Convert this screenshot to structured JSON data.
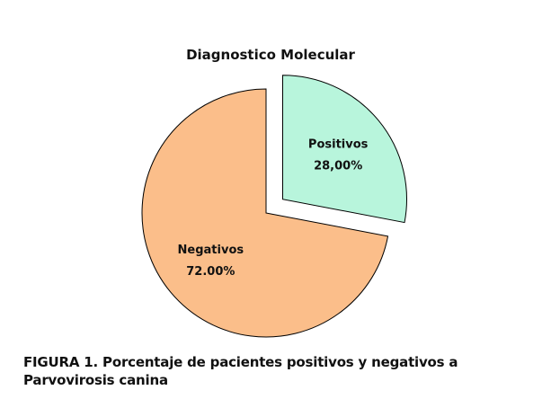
{
  "chart_data": {
    "type": "pie",
    "title": "Diagnostico Molecular",
    "slices": [
      {
        "name": "Positivos",
        "value": 28.0,
        "value_label": "28,00%",
        "color": "#b8f5dc",
        "exploded": true
      },
      {
        "name": "Negativos",
        "value": 72.0,
        "value_label": "72.00%",
        "color": "#fbbe8a",
        "exploded": false
      }
    ],
    "edge_color": "#000000"
  },
  "caption": "FIGURA 1. Porcentaje de pacientes positivos y negativos a Parvovirosis canina"
}
